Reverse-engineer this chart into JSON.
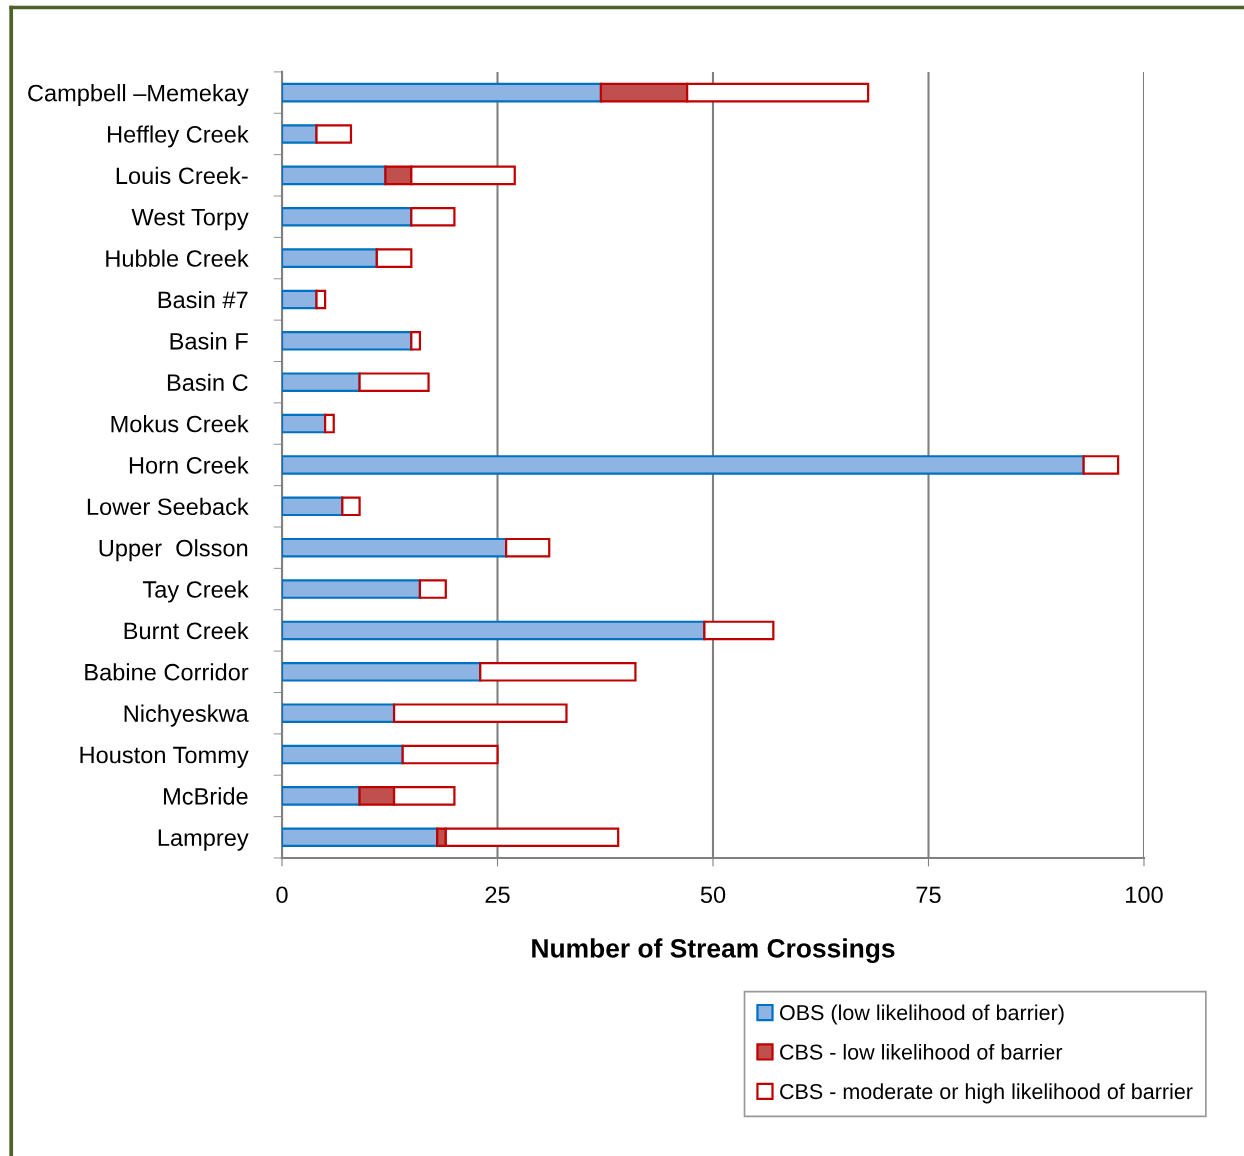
{
  "chart_data": {
    "type": "bar",
    "orientation": "horizontal",
    "stacked": true,
    "xlabel": "Number of Stream Crossings",
    "categories": [
      "Campbell –Memekay",
      "Heffley Creek",
      "Louis Creek-",
      "West Torpy",
      "Hubble Creek",
      "Basin #7",
      "Basin F",
      "Basin C",
      "Mokus Creek",
      "Horn Creek",
      "Lower Seeback",
      "Upper  Olsson",
      "Tay Creek",
      "Burnt Creek",
      "Babine Corridor",
      "Nichyeskwa",
      "Houston Tommy",
      "McBride",
      "Lamprey"
    ],
    "series": [
      {
        "name": "OBS (low likelihood of barrier)",
        "color": "#8eb4e3",
        "values": [
          37,
          4,
          12,
          15,
          11,
          4,
          15,
          9,
          5,
          93,
          7,
          26,
          16,
          49,
          23,
          13,
          14,
          9,
          18
        ]
      },
      {
        "name": "CBS - low likelihood of barrier",
        "color": "#c0504d",
        "values": [
          10,
          null,
          3,
          null,
          null,
          null,
          null,
          null,
          null,
          null,
          null,
          null,
          null,
          null,
          null,
          null,
          null,
          4,
          1
        ]
      },
      {
        "name": "CBS - moderate or high likelihood of barrier",
        "color": "#ffffff",
        "values": [
          21,
          4,
          12,
          5,
          4,
          1,
          1,
          8,
          1,
          4,
          2,
          5,
          3,
          8,
          18,
          20,
          11,
          7,
          20
        ]
      }
    ],
    "xlim": [
      0,
      100
    ],
    "xticks": [
      0,
      25,
      50,
      75,
      100
    ],
    "grid": "x",
    "legend": "bottom right"
  }
}
